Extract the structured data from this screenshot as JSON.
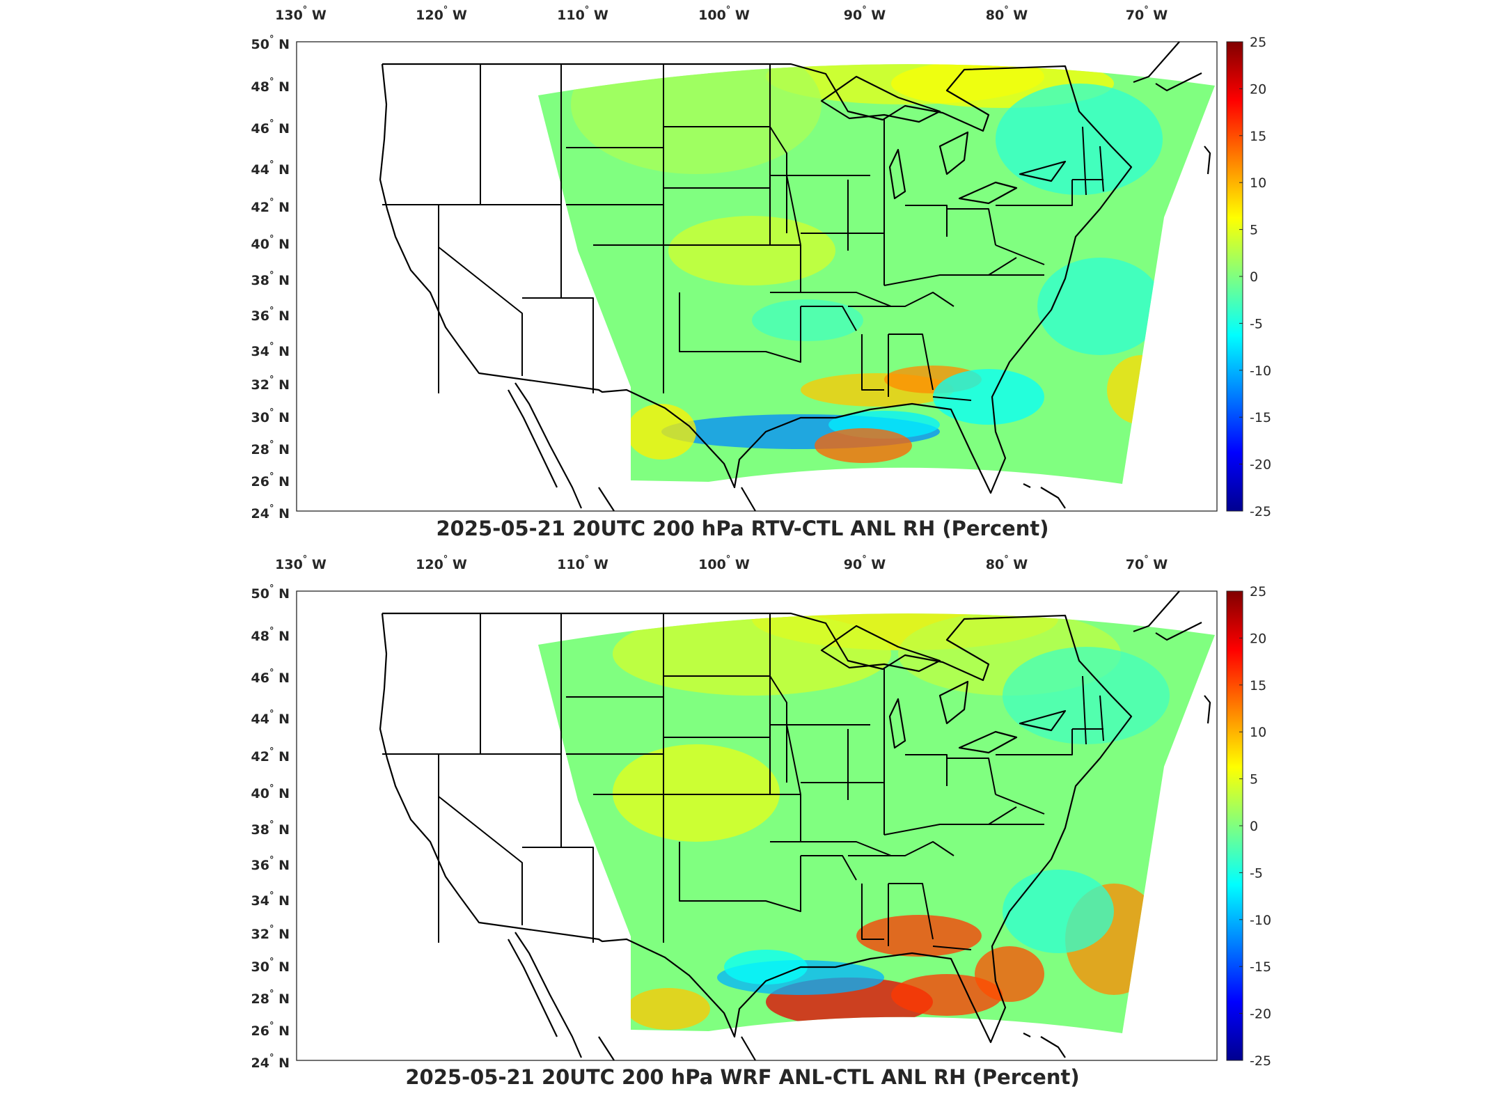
{
  "colors": {
    "colormap": [
      "#00008f",
      "#0000ff",
      "#0080ff",
      "#00ffff",
      "#80ff80",
      "#ffff00",
      "#ff8000",
      "#ff0000",
      "#800000"
    ],
    "background": "#ffffff"
  },
  "map": {
    "longitude_labels": [
      "130° W",
      "120° W",
      "110° W",
      "100° W",
      "90° W",
      "80° W",
      "70° W"
    ],
    "latitude_labels": [
      "50° N",
      "48° N",
      "46° N",
      "44° N",
      "42° N",
      "40° N",
      "38° N",
      "36° N",
      "34° N",
      "32° N",
      "30° N",
      "28° N",
      "26° N",
      "24° N"
    ],
    "colorbar": {
      "ticks": [
        "25",
        "20",
        "15",
        "10",
        "5",
        "0",
        "-5",
        "-10",
        "-15",
        "-20",
        "-25"
      ],
      "range": [
        -25,
        25
      ]
    }
  },
  "panels": [
    {
      "title": "2025-05-21 20UTC 200 hPa RTV-CTL ANL RH (Percent)"
    },
    {
      "title": "2025-05-21 20UTC 200 hPa WRF ANL-CTL ANL RH (Percent)"
    }
  ]
}
